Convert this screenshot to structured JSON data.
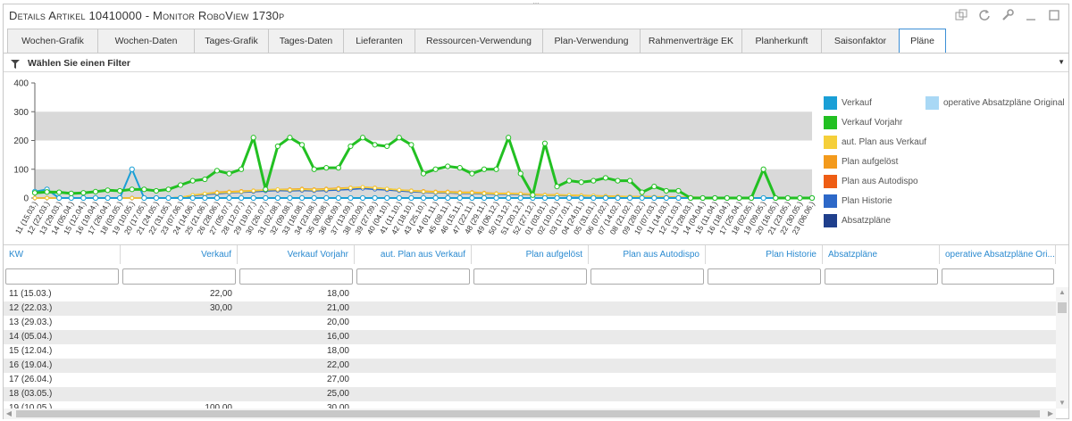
{
  "window": {
    "title": "Details Artikel 10410000 - Monitor RoboView 1730p",
    "grip": "...",
    "icons": [
      "restore-window-icon",
      "refresh-icon",
      "wrench-icon",
      "minimize-icon",
      "maximize-icon"
    ]
  },
  "tabs": [
    {
      "label": "Wochen-Grafik"
    },
    {
      "label": "Wochen-Daten"
    },
    {
      "label": "Tages-Grafik"
    },
    {
      "label": "Tages-Daten"
    },
    {
      "label": "Lieferanten"
    },
    {
      "label": "Ressourcen-Verwendung"
    },
    {
      "label": "Plan-Verwendung"
    },
    {
      "label": "Rahmenverträge EK"
    },
    {
      "label": "Planherkunft"
    },
    {
      "label": "Saisonfaktor"
    },
    {
      "label": "Pläne",
      "active": true
    }
  ],
  "filter": {
    "label": "Wählen Sie einen Filter"
  },
  "chart_data": {
    "type": "line",
    "ylim": [
      0,
      400
    ],
    "yticks": [
      0,
      100,
      200,
      300,
      400
    ],
    "bands": [
      [
        0,
        100
      ],
      [
        200,
        300
      ]
    ],
    "x": [
      "11 (15.03.)",
      "12 (22.03.)",
      "13 (29.03.)",
      "14 (05.04.)",
      "15 (12.04.)",
      "16 (19.04.)",
      "17 (26.04.)",
      "18 (03.05.)",
      "19 (10.05.)",
      "20 (17.05.)",
      "21 (24.05.)",
      "22 (31.05.)",
      "23 (07.06.)",
      "24 (14.06.)",
      "25 (21.06.)",
      "26 (28.06.)",
      "27 (05.07.)",
      "28 (12.07.)",
      "29 (19.07.)",
      "30 (26.07.)",
      "31 (02.08.)",
      "32 (09.08.)",
      "33 (16.08.)",
      "34 (23.08.)",
      "35 (30.08.)",
      "36 (06.09.)",
      "37 (13.09.)",
      "38 (20.09.)",
      "39 (27.09.)",
      "40 (04.10.)",
      "41 (11.10.)",
      "42 (18.10.)",
      "43 (25.10.)",
      "44 (01.11.)",
      "45 (08.11.)",
      "46 (15.11.)",
      "47 (22.11.)",
      "48 (29.11.)",
      "49 (06.12.)",
      "50 (13.12.)",
      "51 (20.12.)",
      "52 (27.12.)",
      "01 (03.01.)",
      "02 (10.01.)",
      "03 (17.01.)",
      "04 (24.01.)",
      "05 (31.01.)",
      "06 (07.02.)",
      "07 (14.02.)",
      "08 (21.02.)",
      "09 (28.02.)",
      "10 (07.03.)",
      "11 (14.03.)",
      "12 (21.03.)",
      "13 (28.03.)",
      "14 (04.04.)",
      "15 (11.04.)",
      "16 (18.04.)",
      "17 (25.04.)",
      "18 (02.05.)",
      "19 (09.05.)",
      "20 (16.05.)",
      "21 (23.05.)",
      "22 (30.05.)",
      "23 (06.06.)"
    ],
    "series": [
      {
        "name": "Verkauf",
        "color": "#1a9fd6",
        "values": [
          22,
          30,
          0,
          0,
          0,
          0,
          0,
          0,
          100,
          0,
          0,
          0,
          0,
          0,
          0,
          0,
          0,
          0,
          0,
          0,
          0,
          0,
          0,
          0,
          0,
          0,
          0,
          0,
          0,
          0,
          0,
          0,
          0,
          0,
          0,
          0,
          0,
          0,
          0,
          0,
          0,
          0,
          0,
          0,
          0,
          0,
          0,
          0,
          0,
          0,
          0,
          0,
          0,
          0,
          0,
          0,
          0,
          0,
          0,
          0,
          0,
          0,
          0,
          0,
          0
        ]
      },
      {
        "name": "Verkauf Vorjahr",
        "color": "#22c022",
        "values": [
          18,
          21,
          20,
          16,
          18,
          22,
          27,
          25,
          30,
          30,
          25,
          30,
          45,
          60,
          65,
          95,
          85,
          100,
          210,
          30,
          180,
          210,
          185,
          100,
          105,
          105,
          180,
          210,
          185,
          180,
          210,
          185,
          85,
          100,
          110,
          105,
          85,
          100,
          100,
          210,
          85,
          10,
          190,
          40,
          60,
          55,
          60,
          70,
          60,
          60,
          20,
          40,
          25,
          25,
          0,
          0,
          0,
          0,
          0,
          0,
          100,
          0,
          0,
          0,
          0
        ]
      },
      {
        "name": "aut. Plan aus Verkauf",
        "color": "#f5cf3a",
        "values": [
          0,
          0,
          0,
          0,
          0,
          0,
          0,
          0,
          0,
          0,
          0,
          0,
          2,
          10,
          15,
          18,
          20,
          22,
          25,
          28,
          30,
          28,
          30,
          28,
          30,
          32,
          35,
          38,
          35,
          32,
          28,
          25,
          22,
          20,
          20,
          18,
          18,
          16,
          15,
          15,
          14,
          12,
          10,
          10,
          10,
          8,
          8,
          6,
          5,
          5,
          4,
          4,
          3,
          3,
          2,
          2,
          1,
          1,
          0,
          0,
          0,
          0,
          0,
          0,
          0
        ]
      },
      {
        "name": "Plan aufgelöst",
        "color": "#f39a1c",
        "values": [
          0,
          0,
          0,
          0,
          0,
          0,
          0,
          0,
          0,
          0,
          0,
          0,
          2,
          10,
          15,
          20,
          22,
          24,
          26,
          28,
          30,
          30,
          32,
          30,
          32,
          34,
          36,
          38,
          36,
          32,
          28,
          26,
          24,
          22,
          22,
          20,
          20,
          18,
          16,
          16,
          15,
          13,
          11,
          11,
          10,
          9,
          8,
          7,
          6,
          5,
          5,
          4,
          4,
          3,
          3,
          2,
          2,
          1,
          1,
          0,
          0,
          0,
          0,
          0,
          0
        ]
      },
      {
        "name": "Plan aus Autodispo",
        "color": "#ee5d14",
        "values": [
          0,
          0,
          0,
          0,
          0,
          0,
          0,
          0,
          0,
          0,
          0,
          0,
          0,
          0,
          0,
          0,
          0,
          0,
          0,
          0,
          0,
          0,
          0,
          0,
          0,
          0,
          0,
          0,
          0,
          0,
          0,
          0,
          0,
          0,
          0,
          0,
          0,
          0,
          0,
          0,
          0,
          0,
          0,
          0,
          0,
          0,
          0,
          0,
          0,
          0,
          0,
          0,
          0,
          0,
          0,
          0,
          0,
          0,
          0,
          0,
          0,
          0,
          0,
          0,
          0
        ]
      },
      {
        "name": "Plan Historie",
        "color": "#2d68c8",
        "values": [
          0,
          0,
          0,
          0,
          0,
          0,
          0,
          0,
          0,
          0,
          0,
          0,
          2,
          8,
          12,
          15,
          18,
          20,
          22,
          24,
          26,
          25,
          26,
          25,
          26,
          28,
          30,
          33,
          30,
          28,
          25,
          22,
          20,
          18,
          18,
          16,
          16,
          14,
          13,
          13,
          12,
          11,
          9,
          9,
          8,
          7,
          7,
          6,
          5,
          5,
          4,
          4,
          3,
          3,
          2,
          2,
          1,
          1,
          0,
          0,
          0,
          0,
          0,
          0,
          0
        ]
      },
      {
        "name": "Absatzpläne",
        "color": "#1f3f8c",
        "values": [
          0,
          0,
          0,
          0,
          0,
          0,
          0,
          0,
          0,
          0,
          0,
          0,
          0,
          0,
          0,
          0,
          0,
          0,
          0,
          0,
          0,
          0,
          0,
          0,
          0,
          0,
          0,
          0,
          0,
          0,
          0,
          0,
          0,
          0,
          0,
          0,
          0,
          0,
          0,
          0,
          0,
          0,
          0,
          0,
          0,
          0,
          0,
          0,
          0,
          0,
          0,
          0,
          0,
          0,
          0,
          0,
          0,
          0,
          0,
          0,
          0,
          0,
          0,
          0,
          0
        ]
      },
      {
        "name": "operative Absatzpläne Original",
        "color": "#a9d8f5",
        "values": [
          0,
          0,
          0,
          0,
          0,
          0,
          0,
          0,
          0,
          0,
          0,
          0,
          0,
          0,
          0,
          0,
          0,
          0,
          0,
          0,
          0,
          0,
          0,
          0,
          0,
          0,
          0,
          0,
          0,
          0,
          0,
          0,
          0,
          0,
          0,
          0,
          0,
          0,
          0,
          0,
          0,
          0,
          0,
          0,
          0,
          0,
          0,
          0,
          0,
          0,
          0,
          0,
          0,
          0,
          0,
          0,
          0,
          0,
          0,
          0,
          0,
          0,
          0,
          0,
          0
        ]
      }
    ]
  },
  "grid": {
    "columns": [
      {
        "label": "KW",
        "align": "l"
      },
      {
        "label": "Verkauf",
        "align": "r"
      },
      {
        "label": "Verkauf Vorjahr",
        "align": "r"
      },
      {
        "label": "aut. Plan aus Verkauf",
        "align": "r"
      },
      {
        "label": "Plan aufgelöst",
        "align": "r"
      },
      {
        "label": "Plan aus Autodispo",
        "align": "r"
      },
      {
        "label": "Plan Historie",
        "align": "r"
      },
      {
        "label": "Absatzpläne",
        "align": "l"
      },
      {
        "label": "operative Absatzpläne Ori...",
        "align": "l"
      }
    ],
    "rows": [
      [
        "11 (15.03.)",
        "22,00",
        "18,00",
        "",
        "",
        "",
        "",
        "",
        ""
      ],
      [
        "12 (22.03.)",
        "30,00",
        "21,00",
        "",
        "",
        "",
        "",
        "",
        ""
      ],
      [
        "13 (29.03.)",
        "",
        "20,00",
        "",
        "",
        "",
        "",
        "",
        ""
      ],
      [
        "14 (05.04.)",
        "",
        "16,00",
        "",
        "",
        "",
        "",
        "",
        ""
      ],
      [
        "15 (12.04.)",
        "",
        "18,00",
        "",
        "",
        "",
        "",
        "",
        ""
      ],
      [
        "16 (19.04.)",
        "",
        "22,00",
        "",
        "",
        "",
        "",
        "",
        ""
      ],
      [
        "17 (26.04.)",
        "",
        "27,00",
        "",
        "",
        "",
        "",
        "",
        ""
      ],
      [
        "18 (03.05.)",
        "",
        "25,00",
        "",
        "",
        "",
        "",
        "",
        ""
      ],
      [
        "19 (10.05.)",
        "100,00",
        "30,00",
        "",
        "",
        "",
        "",
        "",
        ""
      ]
    ]
  }
}
